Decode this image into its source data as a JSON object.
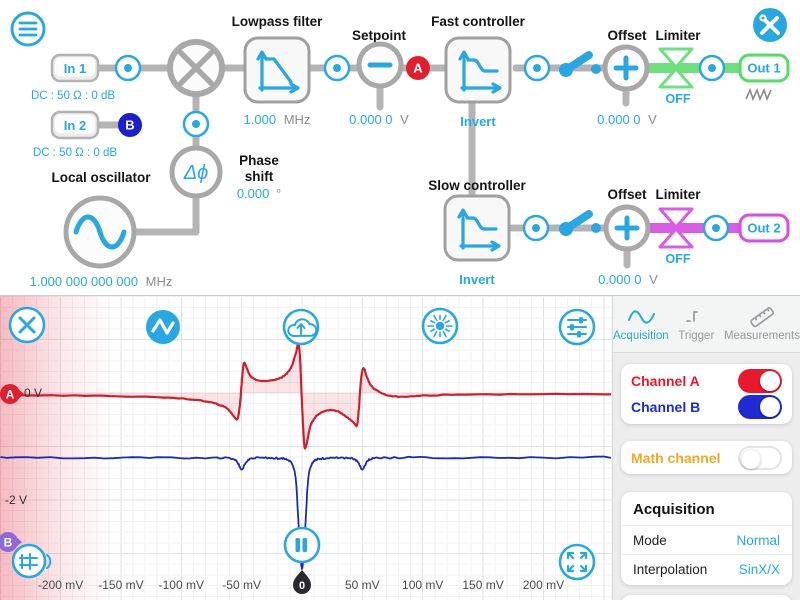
{
  "colors": {
    "accent": "#28a7e2",
    "wire_gray": "#b4b4b4",
    "green": "#6fdf80",
    "magenta": "#d95ce4",
    "badge_red": "#df1f2f",
    "badge_blue": "#1b1fd0",
    "badge_purple": "#8f6ad6",
    "orange": "#f5a623"
  },
  "header": {
    "menu_icon": "hamburger-menu",
    "tools_icon": "wrench-screwdriver"
  },
  "diagram": {
    "in1": {
      "label": "In 1",
      "coupling": "DC : 50 Ω : 0 dB"
    },
    "in2": {
      "label": "In 2",
      "coupling": "DC : 50 Ω : 0 dB",
      "badge": "B"
    },
    "lowpass": {
      "title": "Lowpass filter",
      "value": "1.000",
      "unit": "MHz"
    },
    "setpoint": {
      "title": "Setpoint",
      "value": "0.000 0",
      "unit": "V",
      "badge": "A"
    },
    "fast": {
      "title": "Fast controller",
      "invert_label": "Invert"
    },
    "offset1": {
      "title": "Offset",
      "value": "0.000 0",
      "unit": "V"
    },
    "limiter1": {
      "title": "Limiter",
      "state": "OFF"
    },
    "out1": {
      "label": "Out 1"
    },
    "local_oscillator": {
      "title": "Local oscillator",
      "value": "1.000 000 000 000",
      "unit": "MHz"
    },
    "phase": {
      "title_line1": "Phase",
      "title_line2": "shift",
      "value": "0.000",
      "unit": "°"
    },
    "slow": {
      "title": "Slow controller",
      "invert_label": "Invert"
    },
    "offset2": {
      "title": "Offset",
      "value": "0.000 0",
      "unit": "V"
    },
    "limiter2": {
      "title": "Limiter",
      "state": "OFF"
    },
    "out2": {
      "label": "Out 2"
    }
  },
  "scope": {
    "badge_a": "A",
    "badge_b": "B",
    "trigger_pin": "0"
  },
  "chart_data": {
    "type": "line",
    "x_unit": "mV",
    "y_unit": "V",
    "x_range_mV": [
      -250,
      257
    ],
    "grid": true,
    "x_ticks": [
      {
        "mv": -200,
        "label": "-200 mV"
      },
      {
        "mv": -150,
        "label": "-150 mV"
      },
      {
        "mv": -100,
        "label": "-100 mV"
      },
      {
        "mv": -50,
        "label": "-50 mV"
      },
      {
        "mv": 50,
        "label": "50 mV"
      },
      {
        "mv": 100,
        "label": "100 mV"
      },
      {
        "mv": 150,
        "label": "150 mV"
      },
      {
        "mv": 200,
        "label": "200 mV"
      }
    ],
    "y_labels": [
      {
        "v": 0,
        "label": "0 V"
      },
      {
        "v": -2,
        "label": "-2 V"
      }
    ],
    "series": [
      {
        "name": "Channel A",
        "color": "#cf1e2e",
        "fill": "rgba(225,50,65,0.13)",
        "fill_to_zero": true,
        "noise": 0.008,
        "points": [
          [
            -250,
            -0.04
          ],
          [
            -180,
            -0.05
          ],
          [
            -130,
            -0.07
          ],
          [
            -95,
            -0.11
          ],
          [
            -75,
            -0.18
          ],
          [
            -63,
            -0.28
          ],
          [
            -57,
            -0.42
          ],
          [
            -54,
            -0.5
          ],
          [
            -52.5,
            -0.4
          ],
          [
            -51,
            -0.12
          ],
          [
            -49.5,
            0.32
          ],
          [
            -48,
            0.56
          ],
          [
            -45.5,
            0.45
          ],
          [
            -43,
            0.33
          ],
          [
            -38,
            0.25
          ],
          [
            -30,
            0.22
          ],
          [
            -22,
            0.25
          ],
          [
            -15,
            0.32
          ],
          [
            -9,
            0.48
          ],
          [
            -5,
            0.75
          ],
          [
            -3,
            0.93
          ],
          [
            -1.5,
            0.6
          ],
          [
            0,
            -0.2
          ],
          [
            1.5,
            -0.85
          ],
          [
            2.5,
            -1.03
          ],
          [
            4.5,
            -0.88
          ],
          [
            7,
            -0.62
          ],
          [
            12,
            -0.43
          ],
          [
            20,
            -0.33
          ],
          [
            28,
            -0.33
          ],
          [
            36,
            -0.43
          ],
          [
            43,
            -0.56
          ],
          [
            45.5,
            -0.6
          ],
          [
            47,
            -0.33
          ],
          [
            48.5,
            0.15
          ],
          [
            50,
            0.42
          ],
          [
            51.5,
            0.45
          ],
          [
            54,
            0.28
          ],
          [
            58,
            0.12
          ],
          [
            64,
            0.02
          ],
          [
            72,
            -0.05
          ],
          [
            85,
            -0.07
          ],
          [
            100,
            -0.05
          ],
          [
            130,
            -0.03
          ],
          [
            180,
            -0.02
          ],
          [
            256,
            -0.02
          ]
        ]
      },
      {
        "name": "Channel B",
        "color": "#1e2ab4",
        "fill_to_zero": false,
        "noise": 0.016,
        "points": [
          [
            -250,
            -1.21
          ],
          [
            -180,
            -1.21
          ],
          [
            -120,
            -1.21
          ],
          [
            -80,
            -1.21
          ],
          [
            -60,
            -1.22
          ],
          [
            -54,
            -1.28
          ],
          [
            -50,
            -1.43
          ],
          [
            -46,
            -1.28
          ],
          [
            -40,
            -1.22
          ],
          [
            -30,
            -1.21
          ],
          [
            -20,
            -1.22
          ],
          [
            -13,
            -1.24
          ],
          [
            -8,
            -1.33
          ],
          [
            -5,
            -1.65
          ],
          [
            -3,
            -2.4
          ],
          [
            -1,
            -3.1
          ],
          [
            0,
            -3.28
          ],
          [
            1,
            -3.1
          ],
          [
            3,
            -2.4
          ],
          [
            5,
            -1.65
          ],
          [
            8,
            -1.33
          ],
          [
            13,
            -1.24
          ],
          [
            20,
            -1.22
          ],
          [
            30,
            -1.21
          ],
          [
            40,
            -1.22
          ],
          [
            46,
            -1.28
          ],
          [
            50,
            -1.43
          ],
          [
            54,
            -1.28
          ],
          [
            60,
            -1.22
          ],
          [
            80,
            -1.21
          ],
          [
            120,
            -1.21
          ],
          [
            180,
            -1.21
          ],
          [
            256,
            -1.2
          ]
        ]
      }
    ]
  },
  "panel": {
    "tabs": [
      {
        "label": "Acquisition",
        "active": true,
        "icon": "sine-icon"
      },
      {
        "label": "Trigger",
        "active": false,
        "icon": "trigger-edge-icon"
      },
      {
        "label": "Measurements",
        "active": false,
        "icon": "ruler-icon"
      }
    ],
    "channels": [
      {
        "label": "Channel A",
        "color": "#e8192c",
        "on": true
      },
      {
        "label": "Channel B",
        "color": "#1e2bd0",
        "on": true
      }
    ],
    "math": {
      "label": "Math channel",
      "color": "#f5a623",
      "on": false
    },
    "acquisition": {
      "title": "Acquisition",
      "rows": [
        {
          "label": "Mode",
          "value": "Normal"
        },
        {
          "label": "Interpolation",
          "value": "SinX/X"
        }
      ]
    }
  }
}
